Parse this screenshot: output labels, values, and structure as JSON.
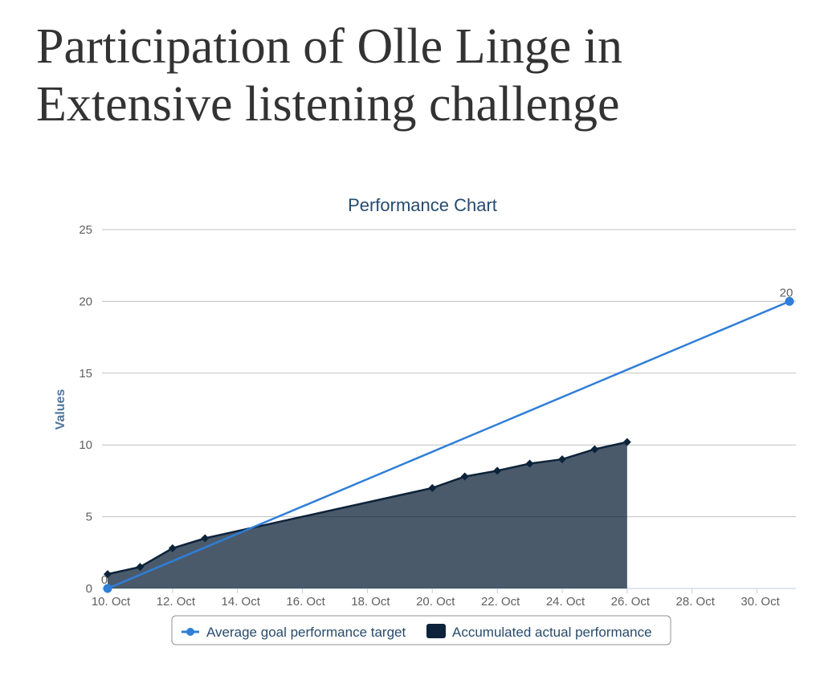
{
  "page": {
    "title": "Participation of Olle Linge in Extensive listening challenge"
  },
  "chart_data": {
    "type": "line",
    "title": "Performance Chart",
    "xlabel": "",
    "ylabel": "Values",
    "x_start": "10. Oct",
    "x_tick_labels": [
      "10. Oct",
      "12. Oct",
      "14. Oct",
      "16. Oct",
      "18. Oct",
      "20. Oct",
      "22. Oct",
      "24. Oct",
      "26. Oct",
      "28. Oct",
      "30. Oct"
    ],
    "xlim": [
      "10. Oct",
      "31. Oct"
    ],
    "ylim": [
      0,
      25
    ],
    "y_ticks": [
      0,
      5,
      10,
      15,
      20,
      25
    ],
    "grid": true,
    "legend_position": "bottom-center",
    "series": [
      {
        "name": "Average goal performance target",
        "type": "line",
        "color": "#2f7ed8",
        "marker": "circle",
        "x": [
          "10. Oct",
          "31. Oct"
        ],
        "values": [
          0,
          20
        ],
        "data_labels": [
          "0",
          "20"
        ]
      },
      {
        "name": "Accumulated actual performance",
        "type": "area",
        "color": "#0d233a",
        "marker": "diamond",
        "x": [
          "10. Oct",
          "11. Oct",
          "12. Oct",
          "13. Oct",
          "20. Oct",
          "21. Oct",
          "22. Oct",
          "23. Oct",
          "24. Oct",
          "25. Oct",
          "26. Oct"
        ],
        "values": [
          1.0,
          1.5,
          2.8,
          3.5,
          7.0,
          7.8,
          8.2,
          8.7,
          9.0,
          9.7,
          10.2
        ]
      }
    ]
  }
}
